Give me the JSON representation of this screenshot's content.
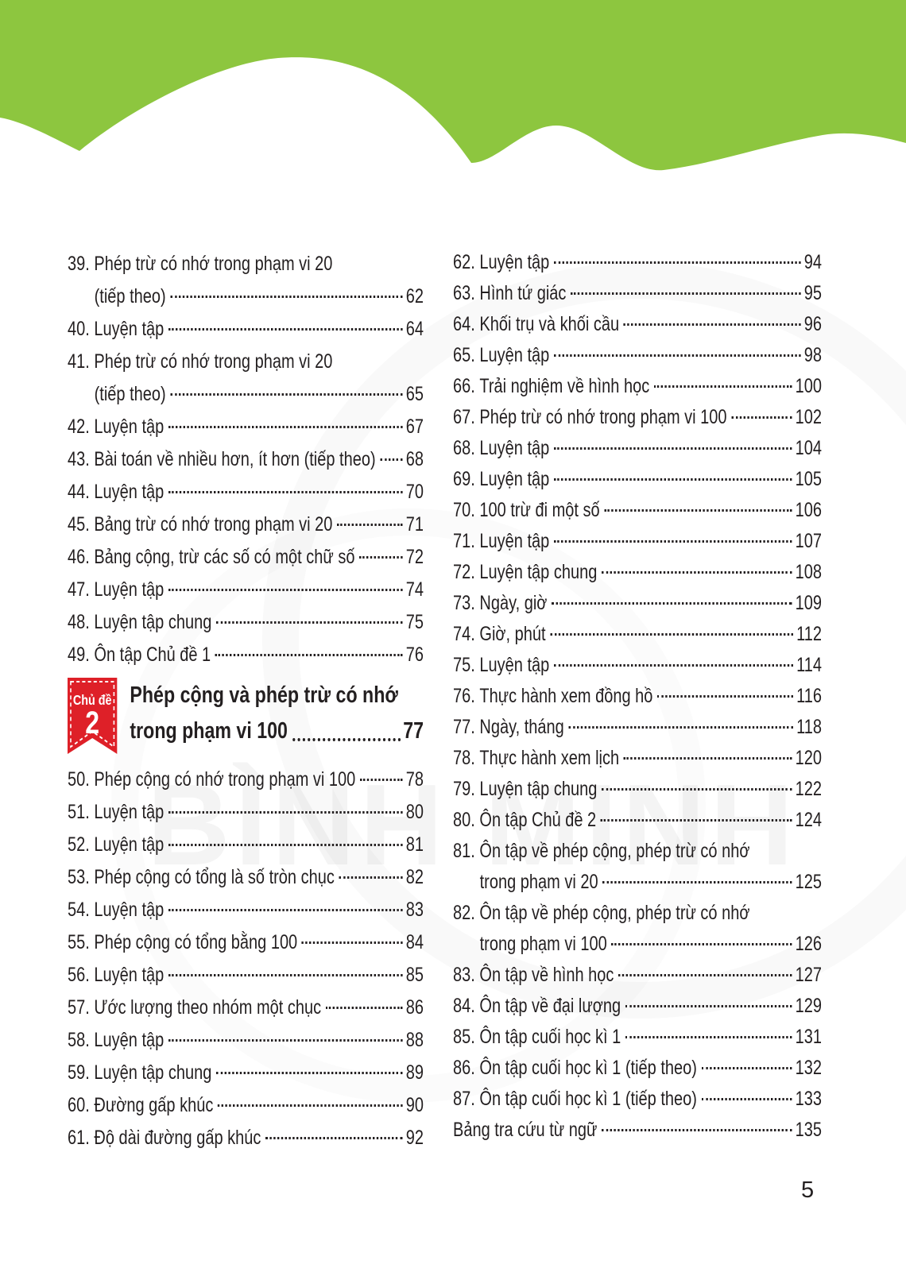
{
  "colors": {
    "green": "#8dc63f",
    "red": "#de2028",
    "text": "#231f20"
  },
  "page": {
    "number": "5"
  },
  "watermark": {
    "text": "BÌNH MINH"
  },
  "chapter_badge": {
    "label": "Chủ đề",
    "number": "2",
    "title_line1": "Phép cộng và phép trừ có nhớ",
    "title_line2": "trong phạm vi 100",
    "page": "77"
  },
  "left_column": {
    "before_chapter": [
      {
        "num": "39.",
        "title": "Phép trừ có nhớ trong phạm vi 20",
        "title2": "(tiếp theo)",
        "page": "62"
      },
      {
        "num": "40.",
        "title": "Luyện tập",
        "page": "64"
      },
      {
        "num": "41.",
        "title": "Phép trừ có nhớ trong phạm vi 20",
        "title2": "(tiếp theo)",
        "page": "65"
      },
      {
        "num": "42.",
        "title": "Luyện tập",
        "page": "67"
      },
      {
        "num": "43.",
        "title": "Bài toán về nhiều hơn, ít hơn (tiếp theo)",
        "page": "68"
      },
      {
        "num": "44.",
        "title": "Luyện tập",
        "page": "70"
      },
      {
        "num": "45.",
        "title": "Bảng trừ có nhớ trong phạm vi 20",
        "page": "71"
      },
      {
        "num": "46.",
        "title": "Bảng cộng, trừ các số có một chữ số",
        "page": "72"
      },
      {
        "num": "47.",
        "title": "Luyện tập",
        "page": "74"
      },
      {
        "num": "48.",
        "title": "Luyện tập chung",
        "page": "75"
      },
      {
        "num": "49.",
        "title": "Ôn tập Chủ đề 1",
        "page": "76"
      }
    ],
    "after_chapter": [
      {
        "num": "50.",
        "title": "Phép cộng có nhớ trong phạm vi 100",
        "page": "78"
      },
      {
        "num": "51.",
        "title": "Luyện tập",
        "page": "80"
      },
      {
        "num": "52.",
        "title": "Luyện tập",
        "page": "81"
      },
      {
        "num": "53.",
        "title": "Phép cộng có tổng là số tròn chục",
        "page": "82"
      },
      {
        "num": "54.",
        "title": "Luyện tập",
        "page": "83"
      },
      {
        "num": "55.",
        "title": "Phép cộng có tổng bằng 100",
        "page": "84"
      },
      {
        "num": "56.",
        "title": "Luyện tập",
        "page": "85"
      },
      {
        "num": "57.",
        "title": "Ước lượng theo nhóm một chục",
        "page": "86"
      },
      {
        "num": "58.",
        "title": "Luyện tập",
        "page": "88"
      },
      {
        "num": "59.",
        "title": "Luyện tập chung",
        "page": "89"
      },
      {
        "num": "60.",
        "title": "Đường gấp khúc",
        "page": "90"
      },
      {
        "num": "61.",
        "title": "Độ dài đường gấp khúc",
        "page": "92"
      }
    ]
  },
  "right_column": {
    "entries": [
      {
        "num": "62.",
        "title": "Luyện tập",
        "page": "94"
      },
      {
        "num": "63.",
        "title": "Hình tứ giác",
        "page": "95"
      },
      {
        "num": "64.",
        "title": "Khối trụ và khối cầu",
        "page": "96"
      },
      {
        "num": "65.",
        "title": "Luyện tập",
        "page": "98"
      },
      {
        "num": "66.",
        "title": "Trải nghiệm về hình học",
        "page": "100"
      },
      {
        "num": "67.",
        "title": "Phép trừ có nhớ trong phạm vi 100",
        "page": "102"
      },
      {
        "num": "68.",
        "title": "Luyện tập",
        "page": "104"
      },
      {
        "num": "69.",
        "title": "Luyện tập",
        "page": "105"
      },
      {
        "num": "70.",
        "title": "100 trừ đi một số",
        "page": "106"
      },
      {
        "num": "71.",
        "title": "Luyện tập",
        "page": "107"
      },
      {
        "num": "72.",
        "title": "Luyện tập chung",
        "page": "108"
      },
      {
        "num": "73.",
        "title": "Ngày, giờ",
        "page": "109"
      },
      {
        "num": "74.",
        "title": "Giờ, phút",
        "page": "112"
      },
      {
        "num": "75.",
        "title": "Luyện tập",
        "page": "114"
      },
      {
        "num": "76.",
        "title": "Thực hành xem đồng hồ",
        "page": "116"
      },
      {
        "num": "77.",
        "title": "Ngày, tháng",
        "page": "118"
      },
      {
        "num": "78.",
        "title": "Thực hành xem lịch",
        "page": "120"
      },
      {
        "num": "79.",
        "title": "Luyện tập chung",
        "page": "122"
      },
      {
        "num": "80.",
        "title": "Ôn tập Chủ đề 2",
        "page": "124"
      },
      {
        "num": "81.",
        "title": "Ôn tập về phép cộng, phép trừ có nhớ",
        "title2": "trong phạm vi 20",
        "page": "125"
      },
      {
        "num": "82.",
        "title": "Ôn tập về phép cộng, phép trừ có nhớ",
        "title2": "trong phạm vi 100",
        "page": "126"
      },
      {
        "num": "83.",
        "title": "Ôn tập về hình học",
        "page": "127"
      },
      {
        "num": "84.",
        "title": "Ôn tập về đại lượng",
        "page": "129"
      },
      {
        "num": "85.",
        "title": "Ôn tập cuối học kì 1",
        "page": "131"
      },
      {
        "num": "86.",
        "title": "Ôn tập cuối học kì 1 (tiếp theo)",
        "page": "132"
      },
      {
        "num": "87.",
        "title": "Ôn tập cuối học kì 1 (tiếp theo)",
        "page": "133"
      },
      {
        "num": "",
        "title": "Bảng tra cứu từ ngữ",
        "page": "135"
      }
    ]
  }
}
